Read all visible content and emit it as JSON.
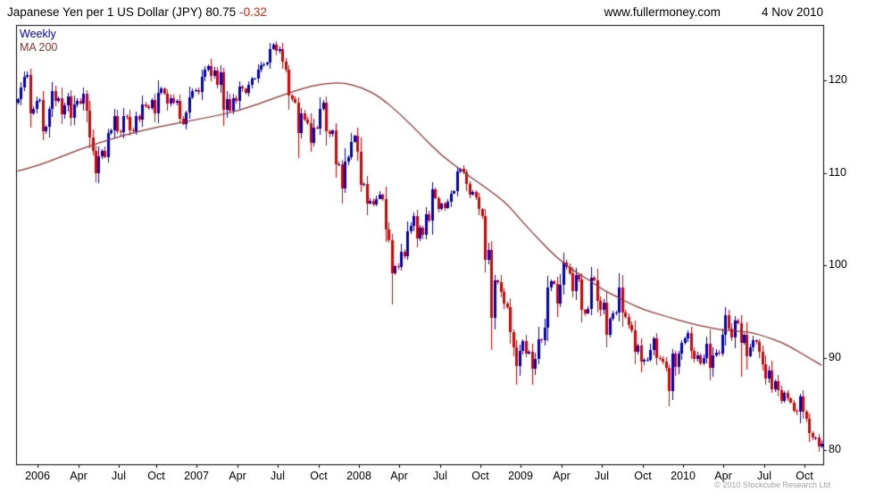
{
  "header": {
    "title": "Japanese Yen per 1 US Dollar (JPY)",
    "price": "80.75",
    "change": "-0.32",
    "website": "www.fullermoney.com",
    "date": "4 Nov 2010"
  },
  "legend": {
    "timeframe": "Weekly",
    "ma": "MA 200"
  },
  "footer": {
    "copyright": "© 2010 Stockcube Research Ltd"
  },
  "colors": {
    "up_candle": "#0000cc",
    "down_candle": "#dd0000",
    "ma_line": "#8b3333",
    "weekly_text": "#0000cc",
    "ma_text": "#8b3333",
    "change_text": "#ee2200",
    "frame": "#000000",
    "copyright_text": "#a0a0a0"
  },
  "chart_data": {
    "type": "candlestick",
    "title": "Japanese Yen per 1 US Dollar (JPY)",
    "timeframe": "weekly",
    "last_price": 80.75,
    "change": -0.32,
    "x_range": "Nov 2005 - 4 Nov 2010",
    "grid": false,
    "y_axis_side": "right",
    "ylim": [
      78.5,
      126
    ],
    "yticks": [
      80,
      90,
      100,
      110,
      120
    ],
    "xticks": [
      {
        "index": 7,
        "label": "2006"
      },
      {
        "index": 20,
        "label": "Apr"
      },
      {
        "index": 33,
        "label": "Jul"
      },
      {
        "index": 45,
        "label": "Oct"
      },
      {
        "index": 58,
        "label": "2007"
      },
      {
        "index": 71,
        "label": "Apr"
      },
      {
        "index": 84,
        "label": "Jul"
      },
      {
        "index": 97,
        "label": "Oct"
      },
      {
        "index": 110,
        "label": "2008"
      },
      {
        "index": 123,
        "label": "Apr"
      },
      {
        "index": 136,
        "label": "Jul"
      },
      {
        "index": 149,
        "label": "Oct"
      },
      {
        "index": 162,
        "label": "2009"
      },
      {
        "index": 175,
        "label": "Apr"
      },
      {
        "index": 188,
        "label": "Jul"
      },
      {
        "index": 201,
        "label": "Oct"
      },
      {
        "index": 214,
        "label": "2010"
      },
      {
        "index": 227,
        "label": "Apr"
      },
      {
        "index": 240,
        "label": "Jul"
      },
      {
        "index": 253,
        "label": "Oct"
      }
    ],
    "weekly_closes": [
      118.0,
      119.2,
      120.4,
      120.6,
      116.4,
      116.9,
      117.8,
      117.9,
      114.5,
      115.0,
      116.9,
      118.9,
      117.8,
      118.1,
      116.3,
      117.3,
      118.3,
      116.0,
      117.4,
      117.8,
      117.5,
      118.6,
      116.7,
      113.8,
      112.4,
      110.0,
      111.8,
      112.4,
      111.7,
      114.3,
      114.6,
      116.2,
      114.5,
      114.4,
      116.2,
      116.1,
      114.6,
      114.5,
      116.2,
      115.8,
      117.4,
      117.2,
      117.0,
      117.9,
      116.4,
      118.7,
      119.1,
      118.6,
      117.5,
      118.1,
      117.6,
      117.8,
      115.9,
      115.3,
      116.5,
      118.2,
      118.9,
      119.0,
      118.8,
      120.4,
      121.2,
      121.6,
      120.5,
      121.1,
      119.5,
      120.9,
      116.8,
      118.0,
      116.7,
      118.1,
      117.8,
      119.3,
      119.1,
      118.7,
      119.5,
      120.2,
      120.2,
      121.2,
      121.7,
      121.8,
      121.9,
      123.4,
      123.9,
      123.2,
      123.4,
      122.0,
      121.2,
      118.4,
      118.0,
      117.6,
      114.3,
      116.4,
      115.8,
      115.4,
      113.3,
      114.9,
      114.8,
      116.9,
      117.6,
      114.5,
      114.2,
      114.6,
      110.9,
      110.9,
      108.3,
      111.2,
      111.7,
      113.4,
      114.0,
      112.3,
      108.7,
      108.8,
      106.7,
      107.0,
      106.6,
      107.2,
      107.7,
      107.2,
      103.9,
      102.7,
      99.2,
      99.9,
      99.8,
      101.5,
      101.0,
      103.7,
      104.3,
      105.3,
      102.9,
      104.1,
      103.3,
      105.5,
      104.9,
      108.2,
      107.3,
      106.1,
      106.7,
      106.2,
      106.9,
      107.8,
      108.0,
      110.2,
      110.5,
      110.1,
      108.8,
      107.7,
      107.9,
      107.4,
      106.1,
      105.3,
      100.6,
      101.7,
      94.3,
      98.4,
      98.2,
      97.1,
      95.9,
      95.5,
      92.8,
      91.1,
      89.1,
      90.8,
      91.8,
      90.5,
      90.7,
      88.8,
      89.9,
      92.0,
      91.9,
      93.3,
      97.6,
      98.3,
      98.0,
      95.9,
      97.9,
      100.3,
      99.8,
      99.2,
      97.2,
      99.0,
      98.5,
      95.2,
      94.8,
      95.3,
      98.7,
      98.4,
      96.2,
      95.2,
      96.0,
      92.5,
      94.2,
      94.8,
      94.9,
      97.6,
      94.9,
      94.4,
      93.6,
      93.0,
      90.7,
      91.3,
      89.6,
      89.8,
      89.8,
      90.9,
      92.1,
      90.0,
      89.9,
      89.6,
      88.9,
      86.4,
      90.5,
      89.0,
      90.5,
      91.6,
      92.1,
      92.7,
      90.8,
      89.9,
      90.3,
      89.4,
      90.0,
      91.5,
      88.9,
      90.3,
      90.6,
      90.5,
      92.5,
      94.6,
      93.2,
      92.2,
      94.0,
      93.8,
      91.6,
      92.5,
      90.2,
      91.1,
      91.9,
      91.7,
      90.7,
      89.3,
      87.8,
      88.6,
      86.6,
      87.5,
      86.5,
      85.4,
      86.2,
      85.6,
      85.2,
      84.3,
      84.2,
      85.8,
      84.2,
      83.4,
      81.9,
      81.4,
      81.4,
      80.4,
      80.75
    ],
    "extremes": [
      {
        "index": 3,
        "high": 121.0
      },
      {
        "index": 25,
        "low": 109.0
      },
      {
        "index": 66,
        "low": 115.1
      },
      {
        "index": 82,
        "high": 124.1
      },
      {
        "index": 90,
        "low": 111.6
      },
      {
        "index": 104,
        "low": 107.2
      },
      {
        "index": 120,
        "low": 95.8
      },
      {
        "index": 152,
        "low": 90.9
      },
      {
        "index": 160,
        "low": 87.1
      },
      {
        "index": 165,
        "low": 87.1
      },
      {
        "index": 175,
        "high": 101.4
      },
      {
        "index": 209,
        "low": 84.8
      },
      {
        "index": 232,
        "low": 88.0
      },
      {
        "index": 251,
        "low": 82.9,
        "high": 85.9
      },
      {
        "index": 257,
        "low": 80.3
      },
      {
        "index": 258,
        "low": 80.2,
        "high": 81.1
      }
    ],
    "ma200": {
      "period_label": "MA 200",
      "anchors": [
        [
          0,
          110.2
        ],
        [
          7,
          110.8
        ],
        [
          20,
          112.6
        ],
        [
          33,
          114.0
        ],
        [
          45,
          115.0
        ],
        [
          58,
          115.8
        ],
        [
          71,
          116.7
        ],
        [
          84,
          118.3
        ],
        [
          92,
          119.2
        ],
        [
          97,
          119.6
        ],
        [
          104,
          119.8
        ],
        [
          110,
          119.3
        ],
        [
          116,
          118.3
        ],
        [
          123,
          116.3
        ],
        [
          130,
          113.9
        ],
        [
          136,
          111.9
        ],
        [
          143,
          110.1
        ],
        [
          149,
          108.7
        ],
        [
          154,
          107.5
        ],
        [
          158,
          106.3
        ],
        [
          162,
          104.7
        ],
        [
          167,
          102.9
        ],
        [
          171,
          101.5
        ],
        [
          175,
          100.3
        ],
        [
          179,
          99.3
        ],
        [
          184,
          98.3
        ],
        [
          188,
          97.3
        ],
        [
          193,
          96.5
        ],
        [
          197,
          95.8
        ],
        [
          201,
          95.2
        ],
        [
          206,
          94.7
        ],
        [
          210,
          94.3
        ],
        [
          214,
          93.9
        ],
        [
          219,
          93.5
        ],
        [
          223,
          93.2
        ],
        [
          227,
          93.0
        ],
        [
          232,
          92.9
        ],
        [
          236,
          92.7
        ],
        [
          240,
          92.3
        ],
        [
          245,
          91.7
        ],
        [
          249,
          91.0
        ],
        [
          253,
          90.2
        ],
        [
          256,
          89.6
        ],
        [
          258,
          89.2
        ]
      ]
    }
  }
}
